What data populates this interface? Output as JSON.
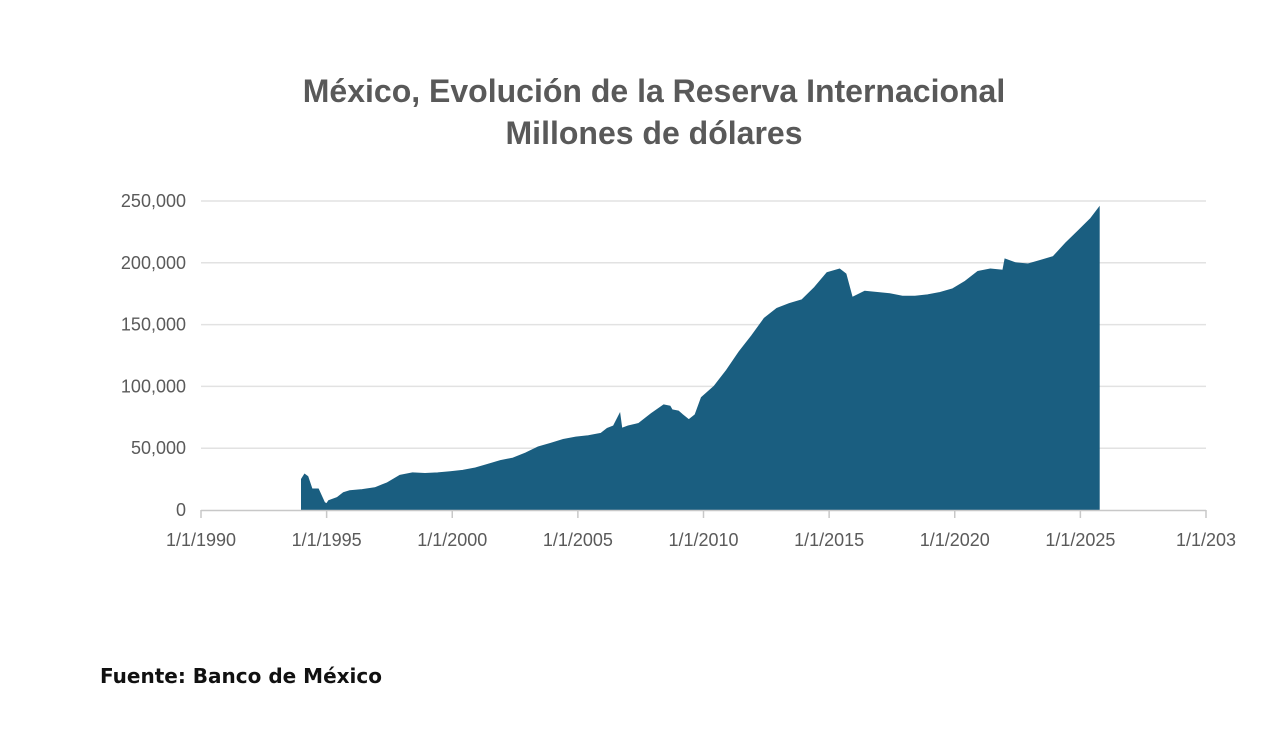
{
  "chart_data": {
    "type": "area",
    "title": "México, Evolución de la Reserva Internacional",
    "subtitle": "Millones de dólares",
    "xlabel": "",
    "ylabel": "",
    "x_ticks": [
      "1/1/1990",
      "1/1/1995",
      "1/1/2000",
      "1/1/2005",
      "1/1/2010",
      "1/1/2015",
      "1/1/2020",
      "1/1/2025",
      "1/1/203"
    ],
    "xlim": [
      "1990-01-01",
      "2030-01-01"
    ],
    "y_ticks": [
      "0",
      "50,000",
      "100,000",
      "150,000",
      "200,000",
      "250,000"
    ],
    "ylim": [
      0,
      250000
    ],
    "grid": true,
    "legend": "none",
    "series": [
      {
        "color": "#1a5e80",
        "x": [
          "1994-01-01",
          "1994-02-15",
          "1994-04-01",
          "1994-06-01",
          "1994-09-01",
          "1994-12-01",
          "1995-01-01",
          "1995-02-01",
          "1995-06-01",
          "1995-09-01",
          "1995-12-01",
          "1996-06-01",
          "1996-12-01",
          "1997-06-01",
          "1997-12-01",
          "1998-06-01",
          "1998-12-01",
          "1999-06-01",
          "1999-12-01",
          "2000-06-01",
          "2000-12-01",
          "2001-06-01",
          "2001-12-01",
          "2002-06-01",
          "2002-12-01",
          "2003-06-01",
          "2003-12-01",
          "2004-06-01",
          "2004-12-01",
          "2005-06-01",
          "2005-12-01",
          "2006-03-01",
          "2006-06-01",
          "2006-09-01",
          "2006-10-01",
          "2007-01-01",
          "2007-06-01",
          "2007-12-01",
          "2008-06-01",
          "2008-09-01",
          "2008-10-01",
          "2009-01-01",
          "2009-03-01",
          "2009-06-01",
          "2009-09-01",
          "2009-12-01",
          "2010-06-01",
          "2010-12-01",
          "2011-06-01",
          "2011-12-01",
          "2012-06-01",
          "2012-12-01",
          "2013-06-01",
          "2013-12-01",
          "2014-06-01",
          "2014-12-01",
          "2015-06-01",
          "2015-09-01",
          "2015-12-01",
          "2016-06-01",
          "2016-12-01",
          "2017-06-01",
          "2017-12-01",
          "2018-06-01",
          "2018-12-01",
          "2019-06-01",
          "2019-12-01",
          "2020-06-01",
          "2020-12-01",
          "2021-06-01",
          "2021-12-01",
          "2022-01-01",
          "2022-06-01",
          "2022-12-01",
          "2023-06-01",
          "2023-12-01",
          "2024-06-01",
          "2024-12-01",
          "2025-06-01",
          "2025-10-01"
        ],
        "y": [
          25000,
          29000,
          27000,
          17000,
          17000,
          6000,
          5000,
          7500,
          10000,
          14000,
          15500,
          16500,
          18000,
          22000,
          28000,
          30000,
          29500,
          30000,
          31000,
          32000,
          34000,
          37000,
          40000,
          42000,
          46000,
          51000,
          54000,
          57000,
          59000,
          60000,
          62000,
          66000,
          68000,
          78000,
          66000,
          68000,
          70000,
          78000,
          85000,
          84000,
          81000,
          80000,
          77000,
          73000,
          77000,
          91000,
          100000,
          113000,
          128000,
          141000,
          155000,
          163000,
          167000,
          170000,
          180000,
          192000,
          195000,
          191000,
          172000,
          177000,
          176000,
          175000,
          173000,
          173000,
          174000,
          176000,
          179000,
          185000,
          193000,
          195000,
          194000,
          203000,
          200000,
          199000,
          202000,
          205000,
          216000,
          226000,
          236000,
          245000
        ]
      }
    ]
  },
  "source": "Fuente: Banco de México"
}
